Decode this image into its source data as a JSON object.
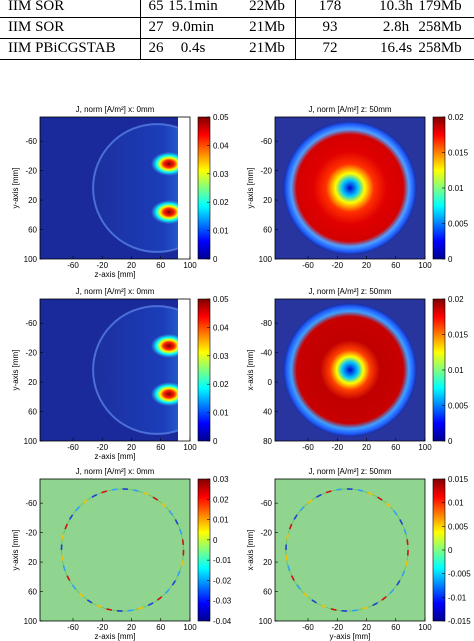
{
  "table": {
    "rows": [
      [
        "IIM SOR",
        "65",
        "15.1min",
        "22Mb",
        "178",
        "10.3h",
        "179Mb"
      ],
      [
        "IIM SOR",
        "27",
        "9.0min",
        "21Mb",
        "93",
        "2.8h",
        "258Mb"
      ],
      [
        "IIM PBiCGSTAB",
        "26",
        "0.4s",
        "21Mb",
        "72",
        "16.4s",
        "258Mb"
      ]
    ]
  },
  "figures": [
    {
      "title": "J, norm [A/m²] x: 0mm",
      "xlabel": "z-axis [mm]",
      "ylabel": "y-axis [mm]",
      "xticks": [
        "-60",
        "-20",
        "20",
        "60",
        "100"
      ],
      "yticks": [
        "-60",
        "-20",
        "20",
        "60",
        "100"
      ],
      "cbar_ticks": [
        "0.05",
        "0.04",
        "0.03",
        "0.02",
        "0.01",
        "0"
      ],
      "kind": "side"
    },
    {
      "title": "J, norm [A/m²] z: 50mm",
      "xlabel": "",
      "ylabel": "y-axis [mm]",
      "xticks": [
        "-60",
        "-20",
        "20",
        "60",
        "100"
      ],
      "yticks": [
        "-60",
        "-20",
        "20",
        "60",
        "100"
      ],
      "cbar_ticks": [
        "0.02",
        "0.015",
        "0.01",
        "0.005",
        "0"
      ],
      "kind": "ring"
    },
    {
      "title": "J, norm [A/m²] x: 0mm",
      "xlabel": "z-axis [mm]",
      "ylabel": "y-axis [mm]",
      "xticks": [
        "-60",
        "-20",
        "20",
        "60",
        "100"
      ],
      "yticks": [
        "-60",
        "-20",
        "20",
        "60",
        "100"
      ],
      "cbar_ticks": [
        "0.05",
        "0.04",
        "0.03",
        "0.02",
        "0.01",
        "0"
      ],
      "kind": "side"
    },
    {
      "title": "J, norm [A/m²] z: 50mm",
      "xlabel": "",
      "ylabel": "x-axis [mm]",
      "xticks": [
        "-60",
        "-20",
        "20",
        "60",
        "100"
      ],
      "yticks": [
        "-80",
        "-40",
        "0",
        "40",
        "80"
      ],
      "cbar_ticks": [
        "0.02",
        "0.015",
        "0.01",
        "0.005",
        "0"
      ],
      "kind": "ring2"
    },
    {
      "title": "J, norm [A/m²] x: 0mm",
      "xlabel": "z-axis [mm]",
      "ylabel": "y-axis [mm]",
      "xticks": [
        "-60",
        "-20",
        "20",
        "60",
        "100"
      ],
      "yticks": [
        "-60",
        "-20",
        "20",
        "60",
        "100"
      ],
      "cbar_ticks": [
        "0.03",
        "0.02",
        "0.01",
        "0",
        "-0.01",
        "-0.02",
        "-0.03",
        "-0.04"
      ],
      "kind": "diff"
    },
    {
      "title": "J, norm [A/m²] z: 50mm",
      "xlabel": "y-axis [mm]",
      "ylabel": "x-axis [mm]",
      "xticks": [
        "-60",
        "-20",
        "20",
        "60",
        "100"
      ],
      "yticks": [
        "-60",
        "-20",
        "20",
        "60",
        "100"
      ],
      "cbar_ticks": [
        "0.015",
        "0.01",
        "0.005",
        "0",
        "-0.005",
        "-0.01",
        "-0.015"
      ],
      "kind": "diff"
    }
  ]
}
